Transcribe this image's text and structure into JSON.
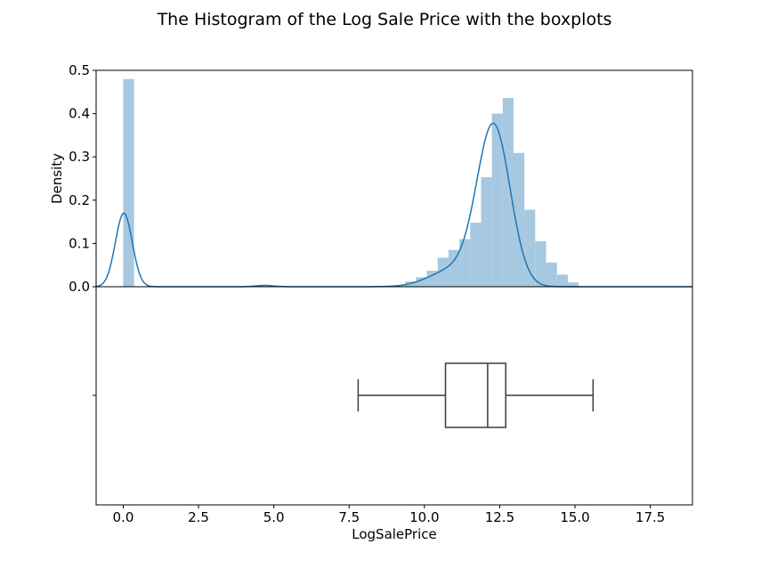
{
  "chart_data": {
    "type": "histogram_with_boxplot",
    "title": "The Histogram of the Log Sale Price with the boxplots",
    "xlabel": "LogSalePrice",
    "xlim": [
      -0.9,
      18.9
    ],
    "x_ticks": [
      0.0,
      2.5,
      5.0,
      7.5,
      10.0,
      12.5,
      15.0,
      17.5
    ],
    "x_tick_labels": [
      "0.0",
      "2.5",
      "5.0",
      "7.5",
      "10.0",
      "12.5",
      "15.0",
      "17.5"
    ],
    "grid": false,
    "histogram": {
      "ylabel": "Density",
      "ylim": [
        0,
        0.5
      ],
      "y_ticks": [
        0.0,
        0.1,
        0.2,
        0.3,
        0.4,
        0.5
      ],
      "y_tick_labels": [
        "0.0",
        "0.1",
        "0.2",
        "0.3",
        "0.4",
        "0.5"
      ],
      "bar_color": "#a6c8e0",
      "bin_width": 0.36,
      "bins": [
        {
          "x": 0.0,
          "density": 0.48
        },
        {
          "x": 9.0,
          "density": 0.003
        },
        {
          "x": 9.36,
          "density": 0.012
        },
        {
          "x": 9.72,
          "density": 0.022
        },
        {
          "x": 10.08,
          "density": 0.037
        },
        {
          "x": 10.44,
          "density": 0.067
        },
        {
          "x": 10.8,
          "density": 0.085
        },
        {
          "x": 11.16,
          "density": 0.11
        },
        {
          "x": 11.52,
          "density": 0.148
        },
        {
          "x": 11.88,
          "density": 0.253
        },
        {
          "x": 12.24,
          "density": 0.4
        },
        {
          "x": 12.6,
          "density": 0.436
        },
        {
          "x": 12.96,
          "density": 0.309
        },
        {
          "x": 13.32,
          "density": 0.178
        },
        {
          "x": 13.68,
          "density": 0.105
        },
        {
          "x": 14.04,
          "density": 0.056
        },
        {
          "x": 14.4,
          "density": 0.028
        },
        {
          "x": 14.76,
          "density": 0.01
        }
      ]
    },
    "kde": {
      "color": "#1f77b4",
      "components": [
        {
          "weight": 0.17,
          "mean": 0.02,
          "sd": 0.28
        },
        {
          "weight": 0.367,
          "mean": 12.3,
          "sd": 0.55
        },
        {
          "weight": 0.04,
          "mean": 11.0,
          "sd": 0.8
        },
        {
          "weight": 0.003,
          "mean": 4.7,
          "sd": 0.3
        }
      ]
    },
    "boxplot": {
      "whisker_low": 7.8,
      "q1": 10.7,
      "median": 12.1,
      "q3": 12.7,
      "whisker_high": 15.6
    }
  }
}
